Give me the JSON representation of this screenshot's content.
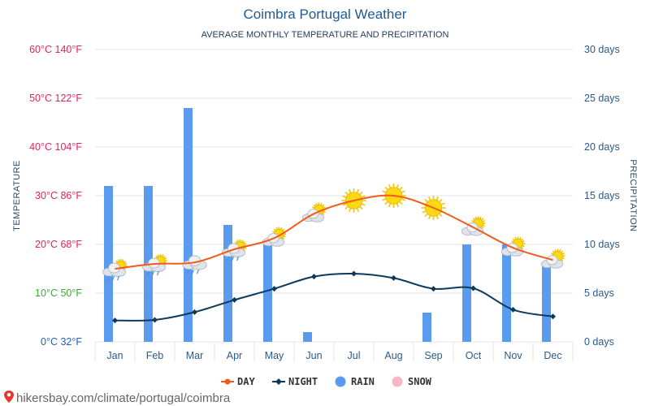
{
  "chart_data": {
    "type": "bar+line",
    "title": "Coimbra Portugal Weather",
    "subtitle": "AVERAGE MONTHLY TEMPERATURE AND PRECIPITATION",
    "categories": [
      "Jan",
      "Feb",
      "Mar",
      "Apr",
      "May",
      "Jun",
      "Jul",
      "Aug",
      "Sep",
      "Oct",
      "Nov",
      "Dec"
    ],
    "left_axis": {
      "title": "TEMPERATURE",
      "range": [
        0,
        60
      ],
      "ticks": [
        {
          "value": 60,
          "label": "60°C 140°F",
          "color": "#e0245e"
        },
        {
          "value": 50,
          "label": "50°C 122°F",
          "color": "#e0245e"
        },
        {
          "value": 40,
          "label": "40°C 104°F",
          "color": "#e0245e"
        },
        {
          "value": 30,
          "label": "30°C 86°F",
          "color": "#e0245e"
        },
        {
          "value": 20,
          "label": "20°C 68°F",
          "color": "#e0245e"
        },
        {
          "value": 10,
          "label": "10°C 50°F",
          "color": "#3aaa35"
        },
        {
          "value": 0,
          "label": "0°C 32°F",
          "color": "#1f5fbf"
        }
      ]
    },
    "right_axis": {
      "title": "PRECIPITATION",
      "range": [
        0,
        30
      ],
      "ticks": [
        {
          "value": 30,
          "label": "30 days"
        },
        {
          "value": 25,
          "label": "25 days"
        },
        {
          "value": 20,
          "label": "20 days"
        },
        {
          "value": 15,
          "label": "15 days"
        },
        {
          "value": 10,
          "label": "10 days"
        },
        {
          "value": 5,
          "label": "5 days"
        },
        {
          "value": 0,
          "label": "0 days"
        }
      ]
    },
    "series": [
      {
        "name": "DAY",
        "type": "line",
        "axis": "left",
        "color": "#f05a1a",
        "values": [
          15,
          16,
          16.3,
          19,
          21.3,
          26.3,
          29,
          30,
          27.5,
          23.5,
          19.3,
          16.8
        ]
      },
      {
        "name": "NIGHT",
        "type": "line",
        "axis": "left",
        "color": "#0d3a5c",
        "values": [
          4.4,
          4.5,
          6.1,
          8.6,
          10.9,
          13.4,
          14,
          13.1,
          10.9,
          11,
          6.6,
          5.2
        ]
      },
      {
        "name": "RAIN",
        "type": "bar",
        "axis": "right",
        "color": "#5a9bf0",
        "values": [
          16,
          16,
          24,
          12,
          10,
          1,
          0,
          0,
          3,
          10,
          10,
          8
        ]
      },
      {
        "name": "SNOW",
        "type": "bar",
        "axis": "right",
        "color": "#f5b8c4",
        "values": [
          0,
          0,
          0,
          0,
          0,
          0,
          0,
          0,
          0,
          0,
          0,
          0
        ]
      }
    ],
    "weather_icons": [
      "cloud-rain-sun",
      "cloud-rain-sun",
      "cloud-rain",
      "cloud-rain-sun",
      "cloud-sun",
      "cloud-sun",
      "sun",
      "sun",
      "sun",
      "cloud-sun",
      "cloud-sun",
      "cloud-sun"
    ],
    "legend": {
      "position": "bottom-center",
      "items": [
        "DAY",
        "NIGHT",
        "RAIN",
        "SNOW"
      ]
    }
  },
  "footer": {
    "text": "hikersbay.com/climate/portugal/coimbra",
    "icon": "location-pin-icon"
  }
}
